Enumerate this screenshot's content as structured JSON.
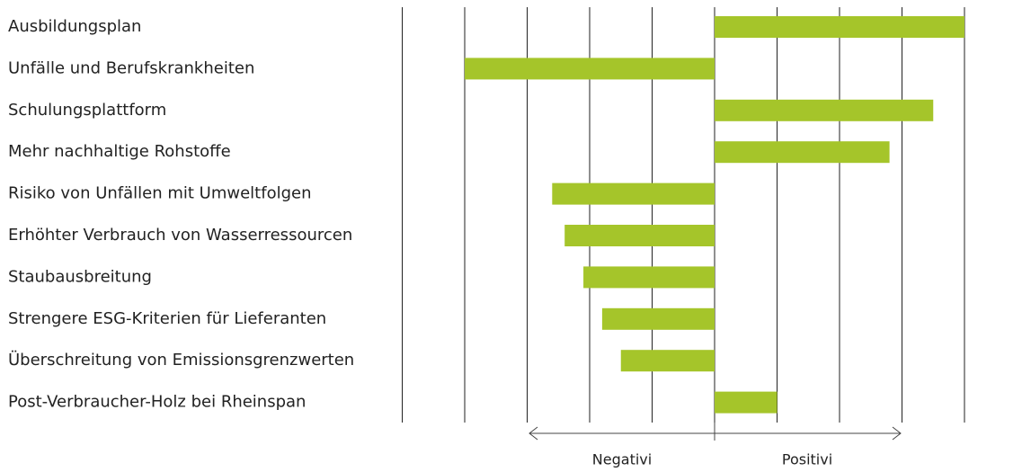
{
  "chart_data": {
    "type": "bar",
    "orientation": "horizontal",
    "categories": [
      "Ausbildungsplan",
      "Unfälle und Berufskrankheiten",
      "Schulungsplattform",
      "Mehr nachhaltige Rohstoffe",
      "Risiko von Unfällen mit Umweltfolgen",
      "Erhöhter Verbrauch von Wasserressourcen",
      "Staubausbreitung",
      "Strengere ESG-Kriterien für Lieferanten",
      "Überschreitung von Emissionsgrenzwerten",
      "Post-Verbraucher-Holz bei Rheinspan"
    ],
    "values": [
      4,
      -4,
      3.5,
      2.8,
      -2.6,
      -2.4,
      -2.1,
      -1.8,
      -1.5,
      1
    ],
    "color": "#a5c52a",
    "xlim": [
      -5,
      4
    ],
    "xticks": [
      -5,
      -4,
      -3,
      -2,
      -1,
      0,
      1,
      2,
      3,
      4
    ],
    "grid": true,
    "annotations": [
      "Negativi",
      "Positivi"
    ]
  }
}
